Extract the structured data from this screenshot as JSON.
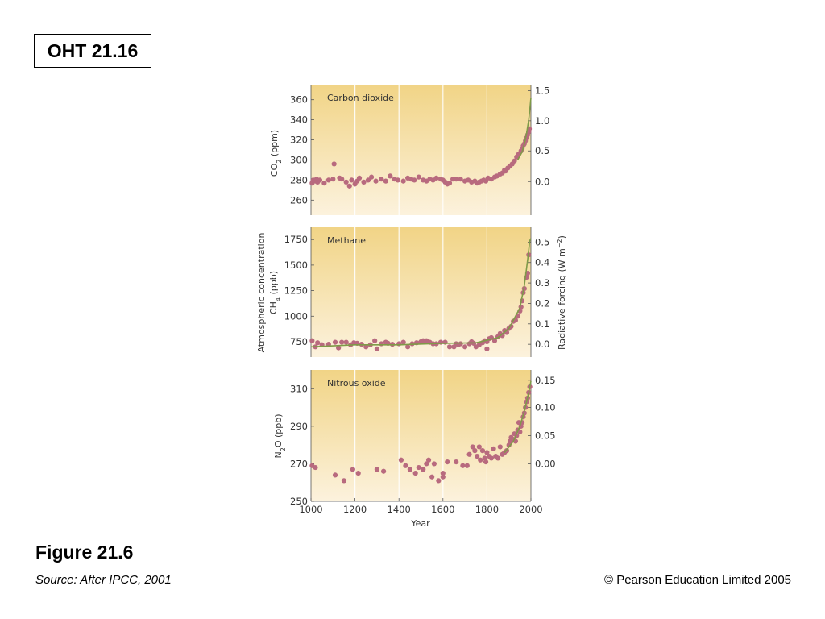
{
  "slide": {
    "oht_label": "OHT 21.16",
    "figure_title": "Figure 21.6",
    "source": "Source: After IPCC, 2001",
    "copyright": "© Pearson Education Limited 2005"
  },
  "colors": {
    "panel_top": "#f1d486",
    "panel_bottom": "#fcf2dd",
    "point": "#b86a7e",
    "line": "#7f9a48"
  },
  "axis_titles": {
    "co2_y": "CO2 (ppm)",
    "ch4_y_line1": "Atmospheric concentration",
    "ch4_y_line2": "CH4 (ppb)",
    "n2o_y": "N2O (ppb)",
    "right_y": "Radiative forcing (W m−2)",
    "x": "Year"
  },
  "chart_data": [
    {
      "type": "scatter",
      "title": "Carbon dioxide",
      "ylabel": "CO2 (ppm)",
      "y2label": "Radiative forcing (W m−2)",
      "xlabel": "Year",
      "xlim": [
        1000,
        2000
      ],
      "ylim": [
        245,
        375
      ],
      "xticks": [
        1000,
        1200,
        1400,
        1600,
        1800,
        2000
      ],
      "yticks": [
        260,
        280,
        300,
        320,
        340,
        360
      ],
      "y2ticks": [
        {
          "label": "0.0",
          "at": 278.5
        },
        {
          "label": "0.5",
          "at": 309
        },
        {
          "label": "1.0",
          "at": 339
        },
        {
          "label": "1.5",
          "at": 369
        }
      ],
      "grid": "vertical",
      "points": [
        [
          1005,
          277
        ],
        [
          1010,
          280
        ],
        [
          1020,
          279
        ],
        [
          1025,
          281
        ],
        [
          1030,
          278
        ],
        [
          1040,
          280
        ],
        [
          1060,
          277
        ],
        [
          1080,
          280
        ],
        [
          1100,
          281
        ],
        [
          1105,
          296
        ],
        [
          1130,
          282
        ],
        [
          1140,
          281
        ],
        [
          1160,
          278
        ],
        [
          1175,
          274
        ],
        [
          1185,
          280
        ],
        [
          1200,
          276
        ],
        [
          1210,
          279
        ],
        [
          1220,
          282
        ],
        [
          1240,
          278
        ],
        [
          1260,
          280
        ],
        [
          1275,
          283
        ],
        [
          1295,
          279
        ],
        [
          1320,
          281
        ],
        [
          1340,
          279
        ],
        [
          1360,
          284
        ],
        [
          1380,
          281
        ],
        [
          1395,
          280
        ],
        [
          1420,
          279
        ],
        [
          1440,
          282
        ],
        [
          1455,
          281
        ],
        [
          1470,
          280
        ],
        [
          1490,
          283
        ],
        [
          1510,
          280
        ],
        [
          1525,
          279
        ],
        [
          1540,
          281
        ],
        [
          1555,
          280
        ],
        [
          1570,
          282
        ],
        [
          1590,
          281
        ],
        [
          1600,
          280
        ],
        [
          1610,
          278
        ],
        [
          1620,
          276
        ],
        [
          1630,
          277
        ],
        [
          1645,
          281
        ],
        [
          1660,
          281
        ],
        [
          1680,
          281
        ],
        [
          1700,
          279
        ],
        [
          1715,
          280
        ],
        [
          1730,
          278
        ],
        [
          1745,
          279
        ],
        [
          1755,
          277
        ],
        [
          1765,
          278
        ],
        [
          1775,
          279
        ],
        [
          1785,
          280
        ],
        [
          1795,
          279
        ],
        [
          1805,
          282
        ],
        [
          1820,
          281
        ],
        [
          1835,
          283
        ],
        [
          1845,
          284
        ],
        [
          1860,
          286
        ],
        [
          1870,
          287
        ],
        [
          1880,
          290
        ],
        [
          1885,
          289
        ],
        [
          1895,
          292
        ],
        [
          1905,
          294
        ],
        [
          1915,
          296
        ],
        [
          1925,
          299
        ],
        [
          1935,
          303
        ],
        [
          1945,
          306
        ],
        [
          1955,
          309
        ],
        [
          1960,
          311
        ],
        [
          1965,
          314
        ],
        [
          1970,
          316
        ],
        [
          1975,
          319
        ],
        [
          1980,
          322
        ],
        [
          1985,
          325
        ],
        [
          1990,
          328
        ],
        [
          1993,
          331
        ]
      ],
      "line": [
        [
          1940,
          300
        ],
        [
          1960,
          308
        ],
        [
          1970,
          316
        ],
        [
          1980,
          326
        ],
        [
          1990,
          340
        ],
        [
          1995,
          350
        ],
        [
          2000,
          362
        ]
      ]
    },
    {
      "type": "scatter",
      "title": "Methane",
      "ylabel": "CH4 (ppb)",
      "y2label": "Radiative forcing (W m−2)",
      "xlabel": "Year",
      "xlim": [
        1000,
        2000
      ],
      "ylim": [
        600,
        1870
      ],
      "xticks": [
        1000,
        1200,
        1400,
        1600,
        1800,
        2000
      ],
      "yticks": [
        750,
        1000,
        1250,
        1500,
        1750
      ],
      "y2ticks": [
        {
          "label": "0.0",
          "at": 725
        },
        {
          "label": "0.1",
          "at": 925
        },
        {
          "label": "0.2",
          "at": 1125
        },
        {
          "label": "0.3",
          "at": 1325
        },
        {
          "label": "0.4",
          "at": 1525
        },
        {
          "label": "0.5",
          "at": 1725
        }
      ],
      "grid": "vertical",
      "points": [
        [
          1005,
          760
        ],
        [
          1020,
          700
        ],
        [
          1030,
          740
        ],
        [
          1050,
          720
        ],
        [
          1080,
          725
        ],
        [
          1110,
          745
        ],
        [
          1125,
          690
        ],
        [
          1140,
          745
        ],
        [
          1160,
          745
        ],
        [
          1180,
          720
        ],
        [
          1195,
          740
        ],
        [
          1210,
          735
        ],
        [
          1230,
          725
        ],
        [
          1250,
          700
        ],
        [
          1270,
          720
        ],
        [
          1290,
          760
        ],
        [
          1300,
          680
        ],
        [
          1320,
          730
        ],
        [
          1340,
          745
        ],
        [
          1350,
          735
        ],
        [
          1370,
          725
        ],
        [
          1400,
          730
        ],
        [
          1420,
          745
        ],
        [
          1440,
          700
        ],
        [
          1460,
          730
        ],
        [
          1480,
          740
        ],
        [
          1500,
          750
        ],
        [
          1510,
          760
        ],
        [
          1525,
          760
        ],
        [
          1540,
          745
        ],
        [
          1555,
          730
        ],
        [
          1570,
          730
        ],
        [
          1590,
          745
        ],
        [
          1610,
          745
        ],
        [
          1630,
          700
        ],
        [
          1650,
          700
        ],
        [
          1660,
          730
        ],
        [
          1670,
          720
        ],
        [
          1680,
          730
        ],
        [
          1700,
          700
        ],
        [
          1720,
          730
        ],
        [
          1730,
          750
        ],
        [
          1740,
          735
        ],
        [
          1750,
          700
        ],
        [
          1765,
          720
        ],
        [
          1780,
          740
        ],
        [
          1790,
          760
        ],
        [
          1800,
          750
        ],
        [
          1800,
          680
        ],
        [
          1810,
          780
        ],
        [
          1820,
          790
        ],
        [
          1835,
          760
        ],
        [
          1850,
          800
        ],
        [
          1860,
          830
        ],
        [
          1870,
          810
        ],
        [
          1880,
          860
        ],
        [
          1890,
          840
        ],
        [
          1900,
          880
        ],
        [
          1910,
          900
        ],
        [
          1920,
          950
        ],
        [
          1930,
          960
        ],
        [
          1940,
          1000
        ],
        [
          1950,
          1050
        ],
        [
          1955,
          1090
        ],
        [
          1960,
          1150
        ],
        [
          1965,
          1230
        ],
        [
          1970,
          1270
        ],
        [
          1980,
          1380
        ],
        [
          1985,
          1420
        ],
        [
          1990,
          1600
        ]
      ],
      "line": [
        [
          1000,
          700
        ],
        [
          1200,
          720
        ],
        [
          1400,
          720
        ],
        [
          1600,
          735
        ],
        [
          1750,
          740
        ],
        [
          1850,
          790
        ],
        [
          1900,
          880
        ],
        [
          1950,
          1080
        ],
        [
          1970,
          1300
        ],
        [
          1985,
          1550
        ],
        [
          1995,
          1740
        ],
        [
          2000,
          1760
        ]
      ]
    },
    {
      "type": "scatter",
      "title": "Nitrous oxide",
      "ylabel": "N2O (ppb)",
      "y2label": "Radiative forcing (W m−2)",
      "xlabel": "Year",
      "xlim": [
        1000,
        2000
      ],
      "ylim": [
        250,
        320
      ],
      "xticks": [
        1000,
        1200,
        1400,
        1600,
        1800,
        2000
      ],
      "yticks": [
        250,
        270,
        290,
        310
      ],
      "y2ticks": [
        {
          "label": "0.00",
          "at": 270
        },
        {
          "label": "0.05",
          "at": 285
        },
        {
          "label": "0.10",
          "at": 300
        },
        {
          "label": "0.15",
          "at": 314.5
        }
      ],
      "grid": "vertical",
      "points": [
        [
          1005,
          269
        ],
        [
          1020,
          268
        ],
        [
          1110,
          264
        ],
        [
          1150,
          261
        ],
        [
          1190,
          267
        ],
        [
          1215,
          265
        ],
        [
          1300,
          267
        ],
        [
          1330,
          266
        ],
        [
          1410,
          272
        ],
        [
          1430,
          269
        ],
        [
          1450,
          267
        ],
        [
          1475,
          265
        ],
        [
          1490,
          268
        ],
        [
          1510,
          267
        ],
        [
          1525,
          270
        ],
        [
          1535,
          272
        ],
        [
          1550,
          263
        ],
        [
          1560,
          270
        ],
        [
          1580,
          261
        ],
        [
          1600,
          265
        ],
        [
          1600,
          263
        ],
        [
          1620,
          271
        ],
        [
          1660,
          271
        ],
        [
          1690,
          269
        ],
        [
          1710,
          269
        ],
        [
          1720,
          275
        ],
        [
          1735,
          279
        ],
        [
          1745,
          277
        ],
        [
          1755,
          274
        ],
        [
          1765,
          279
        ],
        [
          1770,
          272
        ],
        [
          1780,
          277
        ],
        [
          1790,
          273
        ],
        [
          1795,
          271
        ],
        [
          1800,
          276
        ],
        [
          1810,
          274
        ],
        [
          1820,
          273
        ],
        [
          1830,
          278
        ],
        [
          1840,
          274
        ],
        [
          1850,
          273
        ],
        [
          1860,
          279
        ],
        [
          1870,
          275
        ],
        [
          1880,
          276
        ],
        [
          1890,
          277
        ],
        [
          1900,
          280
        ],
        [
          1905,
          282
        ],
        [
          1910,
          284
        ],
        [
          1920,
          283
        ],
        [
          1925,
          286
        ],
        [
          1930,
          282
        ],
        [
          1935,
          285
        ],
        [
          1940,
          288
        ],
        [
          1945,
          292
        ],
        [
          1950,
          287
        ],
        [
          1955,
          290
        ],
        [
          1960,
          292
        ],
        [
          1965,
          295
        ],
        [
          1970,
          297
        ],
        [
          1975,
          300
        ],
        [
          1980,
          303
        ],
        [
          1985,
          305
        ],
        [
          1990,
          308
        ],
        [
          1995,
          311
        ]
      ],
      "line": [
        [
          1880,
          276
        ],
        [
          1920,
          282
        ],
        [
          1950,
          290
        ],
        [
          1970,
          298
        ],
        [
          1990,
          308
        ],
        [
          2000,
          314
        ]
      ]
    }
  ]
}
